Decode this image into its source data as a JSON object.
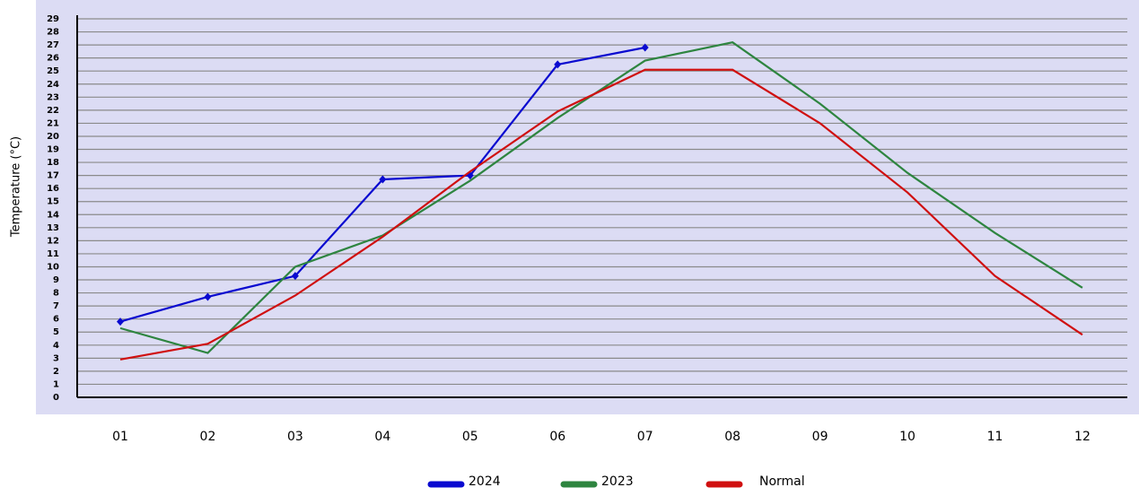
{
  "chart_data": {
    "type": "line",
    "y_label": "Temperature (°C)",
    "categories": [
      "01",
      "02",
      "03",
      "04",
      "05",
      "06",
      "07",
      "08",
      "09",
      "10",
      "11",
      "12"
    ],
    "series": [
      {
        "name": "2024",
        "color": "#0a0ad0",
        "markers": true,
        "values": [
          5.8,
          7.7,
          9.3,
          16.7,
          17,
          25.5,
          26.8,
          null,
          null,
          null,
          null,
          null
        ]
      },
      {
        "name": "2023",
        "color": "#2e8540",
        "markers": false,
        "values": [
          5.3,
          3.4,
          10,
          12.4,
          16.6,
          21.4,
          25.8,
          27.2,
          22.5,
          17.2,
          12.6,
          8.4
        ]
      },
      {
        "name": "Normal",
        "color": "#d01010",
        "markers": false,
        "values": [
          2.9,
          4.1,
          7.8,
          12.3,
          17.3,
          21.9,
          25.1,
          25.1,
          21,
          15.7,
          9.3,
          4.8
        ]
      }
    ],
    "ylim": [
      0,
      29
    ],
    "yticks": [
      0,
      1,
      2,
      3,
      4,
      5,
      6,
      7,
      8,
      9,
      10,
      11,
      12,
      13,
      14,
      15,
      16,
      17,
      18,
      19,
      20,
      21,
      22,
      23,
      24,
      25,
      26,
      27,
      28,
      29
    ],
    "grid": true
  }
}
